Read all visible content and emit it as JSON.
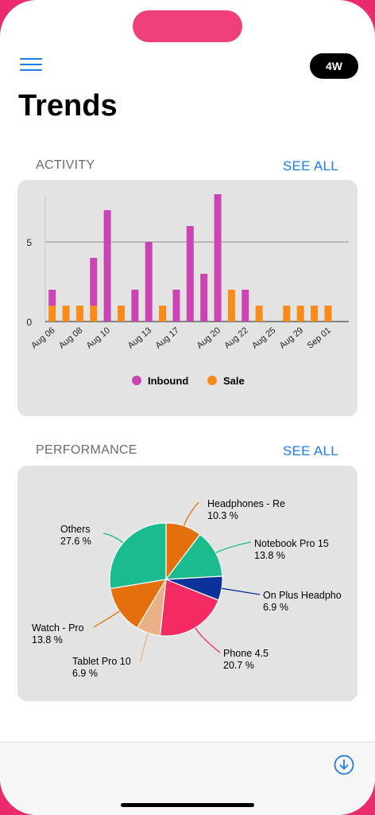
{
  "header": {
    "menu_icon": "hamburger-menu-icon",
    "period_label": "4W",
    "title": "Trends"
  },
  "activity": {
    "section_label": "ACTIVITY",
    "see_all_label": "SEE ALL"
  },
  "performance": {
    "section_label": "PERFORMANCE",
    "see_all_label": "SEE ALL"
  },
  "bottom_bar": {
    "download_icon": "download-circle-icon"
  },
  "colors": {
    "accent": "#1f7ae6",
    "inbound": "#cc44b4",
    "sale": "#f98b18",
    "card": "#e3e3e3"
  },
  "chart_data": [
    {
      "type": "bar",
      "stacked": true,
      "title": "",
      "xlabel": "",
      "ylabel": "",
      "ylim": [
        0,
        8
      ],
      "yticks": [
        0,
        5
      ],
      "grid": "horizontal at 5",
      "legend": "bottom-center",
      "categories": [
        "Aug 06",
        "Aug 07",
        "Aug 08",
        "Aug 09",
        "Aug 10",
        "Aug 11",
        "Aug 12",
        "Aug 13",
        "Aug 14",
        "Aug 17",
        "Aug 18",
        "Aug 19",
        "Aug 20",
        "Aug 21",
        "Aug 22",
        "Aug 23",
        "Aug 25",
        "Aug 26",
        "Aug 29",
        "Aug 30",
        "Sep 01",
        "Sep 02"
      ],
      "tick_labels": [
        "Aug 06",
        "Aug 08",
        "Aug 10",
        "Aug 13",
        "Aug 17",
        "Aug 20",
        "Aug 22",
        "Aug 25",
        "Aug 29",
        "Sep 01"
      ],
      "tick_indices": [
        0,
        2,
        4,
        7,
        9,
        12,
        14,
        16,
        18,
        20
      ],
      "series": [
        {
          "name": "Sale",
          "color": "#f98b18",
          "values": [
            1,
            1,
            1,
            1,
            0,
            1,
            0,
            0,
            1,
            0,
            0,
            0,
            0,
            2,
            0,
            1,
            0,
            1,
            1,
            1,
            1,
            0
          ]
        },
        {
          "name": "Inbound",
          "color": "#cc44b4",
          "values": [
            1,
            0,
            0,
            3,
            7,
            0,
            2,
            5,
            0,
            2,
            6,
            3,
            8,
            0,
            2,
            0,
            0,
            0,
            0,
            0,
            0,
            0
          ]
        }
      ]
    },
    {
      "type": "pie",
      "title": "",
      "legend": "callout labels",
      "slices": [
        {
          "name": "Headphones - Re",
          "value": 10.3,
          "label": "10.3 %",
          "color": "#e3700c"
        },
        {
          "name": "Notebook Pro 15",
          "value": 13.8,
          "label": "13.8 %",
          "color": "#1abc8d"
        },
        {
          "name": "On Plus Headpho",
          "value": 6.9,
          "label": "6.9 %",
          "color": "#0a3299"
        },
        {
          "name": "Phone 4.5",
          "value": 20.7,
          "label": "20.7 %",
          "color": "#f42a62"
        },
        {
          "name": "Tablet Pro 10",
          "value": 6.9,
          "label": "6.9 %",
          "color": "#e9b185"
        },
        {
          "name": "Watch - Pro",
          "value": 13.8,
          "label": "13.8 %",
          "color": "#e3700c"
        },
        {
          "name": "Others",
          "value": 27.6,
          "label": "27.6 %",
          "color": "#1abc8d"
        }
      ]
    }
  ]
}
